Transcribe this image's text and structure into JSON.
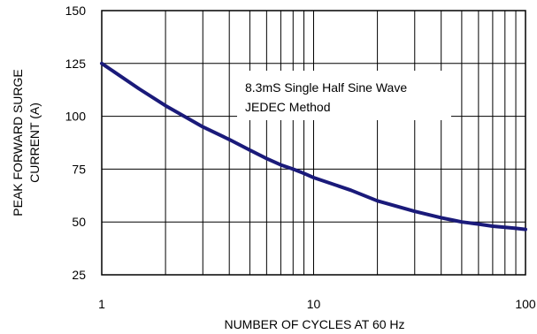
{
  "chart_data": {
    "type": "line",
    "xlabel": "NUMBER OF CYCLES AT 60 Hz",
    "ylabel_lines": [
      "PEAK FORWARD SURGE",
      "CURRENT (A)"
    ],
    "x_scale": "log",
    "xlim": [
      1,
      100
    ],
    "ylim": [
      25,
      150
    ],
    "x_ticks": [
      1,
      10,
      100
    ],
    "x_tick_labels": [
      "1",
      "10",
      "100"
    ],
    "y_ticks": [
      25,
      50,
      75,
      100,
      125,
      150
    ],
    "y_tick_labels": [
      "25",
      "50",
      "75",
      "100",
      "125",
      "150"
    ],
    "grid": true,
    "annotation_lines": [
      "8.3mS Single Half Sine Wave",
      "JEDEC Method"
    ],
    "series": [
      {
        "color": "#1a1a7a",
        "x": [
          1,
          1.5,
          2,
          3,
          4,
          5,
          6,
          7,
          8,
          9,
          10,
          15,
          20,
          30,
          40,
          50,
          60,
          70,
          80,
          90,
          100
        ],
        "y": [
          125,
          113,
          105,
          95,
          89,
          84,
          80,
          77,
          75,
          73,
          71,
          65,
          60,
          55,
          52,
          50,
          49,
          48,
          47.5,
          47,
          46.5
        ]
      }
    ]
  }
}
